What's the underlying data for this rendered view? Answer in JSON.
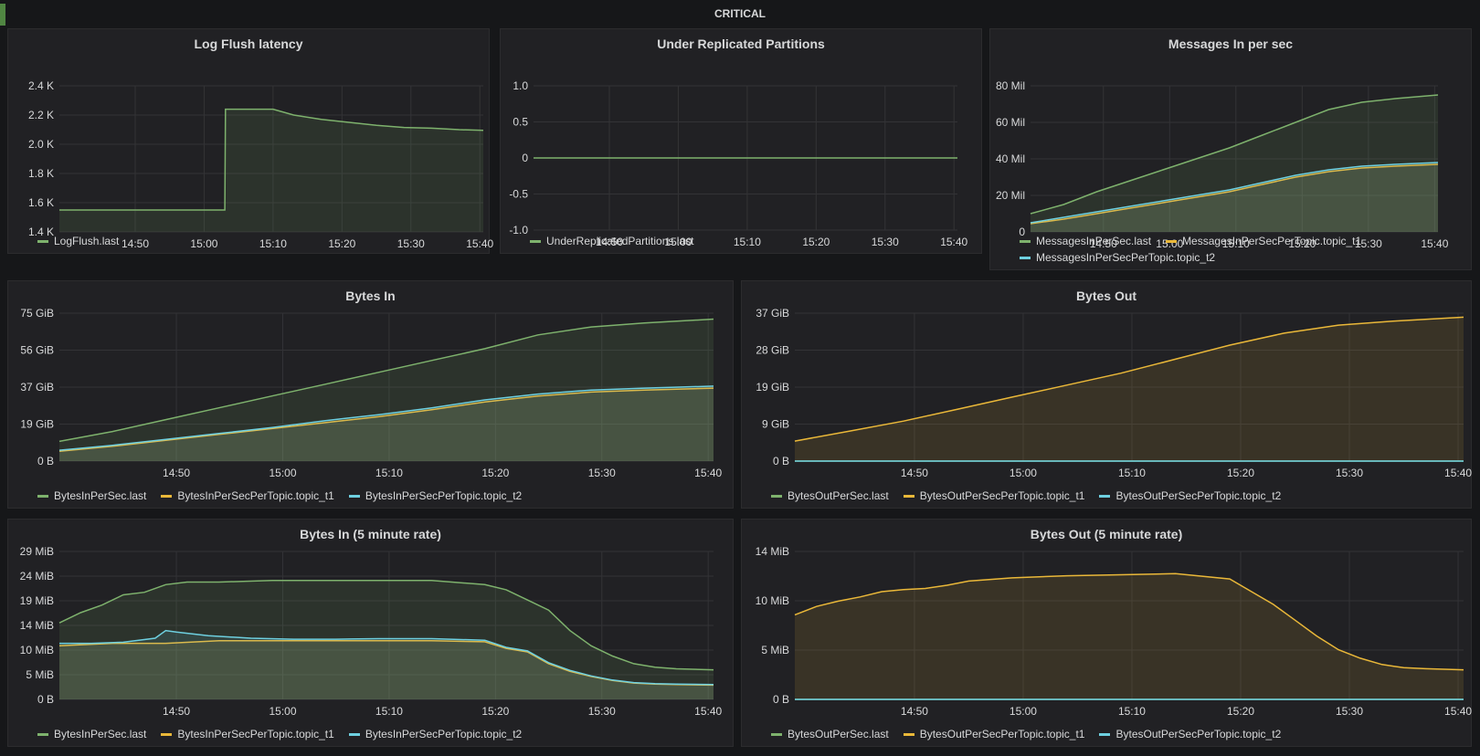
{
  "row": {
    "title": "CRITICAL",
    "marker_color": "#508642"
  },
  "colors": {
    "green": "#7eb26d",
    "orange": "#eab839",
    "cyan": "#6ed0e0",
    "grid": "#333336",
    "panel_bg": "#212124"
  },
  "chart_data": [
    {
      "id": "log-flush",
      "type": "line",
      "title": "Log Flush latency",
      "xticks": [
        "14:50",
        "15:00",
        "15:10",
        "15:20",
        "15:30",
        "15:40"
      ],
      "yticks": [
        "1.4 K",
        "1.6 K",
        "1.8 K",
        "2.0 K",
        "2.2 K",
        "2.4 K"
      ],
      "ylim": [
        1400,
        2400
      ],
      "xrange_min": [
        0,
        61.5
      ],
      "tick_positions_min": [
        11,
        21,
        31,
        41,
        51,
        61
      ],
      "series": [
        {
          "name": "LogFlush.last",
          "color": "#7eb26d",
          "x": [
            0,
            24,
            24.1,
            31,
            34,
            38,
            42,
            46,
            50,
            54,
            58,
            61.5
          ],
          "y": [
            1550,
            1550,
            2240,
            2240,
            2200,
            2170,
            2150,
            2130,
            2115,
            2110,
            2100,
            2095
          ]
        }
      ]
    },
    {
      "id": "under-replicated",
      "type": "line",
      "title": "Under Replicated Partitions",
      "xticks": [
        "14:50",
        "15:00",
        "15:10",
        "15:20",
        "15:30",
        "15:40"
      ],
      "yticks": [
        "-1.0",
        "-0.5",
        "0",
        "0.5",
        "1.0"
      ],
      "ylim": [
        -1.0,
        1.0
      ],
      "xrange_min": [
        0,
        61.5
      ],
      "tick_positions_min": [
        11,
        21,
        31,
        41,
        51,
        61
      ],
      "series": [
        {
          "name": "UnderReplicatedPartitions.last",
          "color": "#7eb26d",
          "x": [
            0,
            61.5
          ],
          "y": [
            0,
            0
          ]
        }
      ]
    },
    {
      "id": "messages-in",
      "type": "line",
      "title": "Messages In per sec",
      "xticks": [
        "14:50",
        "15:00",
        "15:10",
        "15:20",
        "15:30",
        "15:40"
      ],
      "yticks": [
        "0",
        "20 Mil",
        "40 Mil",
        "60 Mil",
        "80 Mil"
      ],
      "ylim": [
        0,
        80
      ],
      "xrange_min": [
        0,
        61.5
      ],
      "tick_positions_min": [
        11,
        21,
        31,
        41,
        51,
        61
      ],
      "series": [
        {
          "name": "MessagesInPerSec.last",
          "color": "#7eb26d",
          "x": [
            0,
            5,
            10,
            15,
            20,
            25,
            30,
            35,
            40,
            45,
            50,
            55,
            61.5
          ],
          "y": [
            10,
            15,
            22,
            28,
            34,
            40,
            46,
            53,
            60,
            67,
            71,
            73,
            75
          ]
        },
        {
          "name": "MessagesInPerSecPerTopic.topic_t1",
          "color": "#eab839",
          "x": [
            0,
            5,
            10,
            15,
            20,
            25,
            30,
            35,
            40,
            45,
            50,
            55,
            61.5
          ],
          "y": [
            4.5,
            7,
            10,
            13,
            16,
            19,
            22,
            26,
            30,
            33,
            35,
            36,
            37
          ]
        },
        {
          "name": "MessagesInPerSecPerTopic.topic_t2",
          "color": "#6ed0e0",
          "x": [
            0,
            5,
            10,
            15,
            20,
            25,
            30,
            35,
            40,
            45,
            50,
            55,
            61.5
          ],
          "y": [
            5,
            8,
            11,
            14,
            17,
            20,
            23,
            27,
            31,
            34,
            36,
            37,
            38
          ]
        }
      ]
    },
    {
      "id": "bytes-in",
      "type": "line",
      "title": "Bytes In",
      "xticks": [
        "14:50",
        "15:00",
        "15:10",
        "15:20",
        "15:30",
        "15:40"
      ],
      "yticks": [
        "0 B",
        "19 GiB",
        "37 GiB",
        "56 GiB",
        "75 GiB"
      ],
      "ylim": [
        0,
        75
      ],
      "xrange_min": [
        0,
        61.5
      ],
      "tick_positions_min": [
        11,
        21,
        31,
        41,
        51,
        61
      ],
      "series": [
        {
          "name": "BytesInPerSec.last",
          "color": "#7eb26d",
          "x": [
            0,
            5,
            10,
            15,
            20,
            25,
            30,
            35,
            40,
            45,
            50,
            55,
            61.5
          ],
          "y": [
            10,
            15,
            21,
            27,
            33,
            39,
            45,
            51,
            57,
            64,
            68,
            70,
            72
          ]
        },
        {
          "name": "BytesInPerSecPerTopic.topic_t1",
          "color": "#eab839",
          "x": [
            0,
            5,
            10,
            15,
            20,
            25,
            30,
            35,
            40,
            45,
            50,
            55,
            61.5
          ],
          "y": [
            5,
            7.5,
            10.5,
            13.5,
            16.5,
            19.5,
            22.5,
            26,
            30,
            33,
            35,
            36,
            37
          ]
        },
        {
          "name": "BytesInPerSecPerTopic.topic_t2",
          "color": "#6ed0e0",
          "x": [
            0,
            5,
            10,
            15,
            20,
            25,
            30,
            35,
            40,
            45,
            50,
            55,
            61.5
          ],
          "y": [
            5.5,
            8,
            11,
            14,
            17,
            20.5,
            23.5,
            27,
            31,
            34,
            36,
            37,
            38
          ]
        }
      ]
    },
    {
      "id": "bytes-out",
      "type": "line",
      "title": "Bytes Out",
      "xticks": [
        "14:50",
        "15:00",
        "15:10",
        "15:20",
        "15:30",
        "15:40"
      ],
      "yticks": [
        "0 B",
        "9 GiB",
        "19 GiB",
        "28 GiB",
        "37 GiB"
      ],
      "ylim": [
        0,
        37
      ],
      "xrange_min": [
        0,
        61.5
      ],
      "tick_positions_min": [
        11,
        21,
        31,
        41,
        51,
        61
      ],
      "series": [
        {
          "name": "BytesOutPerSec.last",
          "color": "#7eb26d",
          "x": [
            0,
            61.5
          ],
          "y": [
            0,
            0
          ]
        },
        {
          "name": "BytesOutPerSecPerTopic.topic_t1",
          "color": "#eab839",
          "x": [
            0,
            5,
            10,
            15,
            20,
            25,
            30,
            35,
            40,
            45,
            50,
            55,
            61.5
          ],
          "y": [
            5,
            7.5,
            10,
            13,
            16,
            19,
            22,
            25.5,
            29,
            32,
            34,
            35,
            36
          ]
        },
        {
          "name": "BytesOutPerSecPerTopic.topic_t2",
          "color": "#6ed0e0",
          "x": [
            0,
            61.5
          ],
          "y": [
            0,
            0
          ]
        }
      ]
    },
    {
      "id": "bytes-in-rate",
      "type": "line",
      "title": "Bytes In (5 minute rate)",
      "xticks": [
        "14:50",
        "15:00",
        "15:10",
        "15:20",
        "15:30",
        "15:40"
      ],
      "yticks": [
        "0 B",
        "5 MiB",
        "10 MiB",
        "14 MiB",
        "19 MiB",
        "24 MiB",
        "29 MiB"
      ],
      "ylim": [
        0,
        29
      ],
      "xrange_min": [
        0,
        61.5
      ],
      "tick_positions_min": [
        11,
        21,
        31,
        41,
        51,
        61
      ],
      "series": [
        {
          "name": "BytesInPerSec.last",
          "color": "#7eb26d",
          "x": [
            0,
            2,
            4,
            6,
            8,
            10,
            12,
            15,
            20,
            25,
            30,
            35,
            40,
            42,
            44,
            46,
            48,
            50,
            52,
            54,
            56,
            58,
            61.5
          ],
          "y": [
            15,
            17,
            18.5,
            20.5,
            21,
            22.5,
            23,
            23,
            23.3,
            23.3,
            23.3,
            23.3,
            22.5,
            21.5,
            19.5,
            17.5,
            13.5,
            10.5,
            8.5,
            7,
            6.3,
            6,
            5.8
          ]
        },
        {
          "name": "BytesInPerSecPerTopic.topic_t1",
          "color": "#eab839",
          "x": [
            0,
            5,
            10,
            15,
            20,
            25,
            30,
            35,
            40,
            42,
            44,
            46,
            48,
            50,
            52,
            54,
            56,
            58,
            61.5
          ],
          "y": [
            10.5,
            11,
            11,
            11.5,
            11.5,
            11.5,
            11.5,
            11.5,
            11.3,
            10,
            9.3,
            7,
            5.5,
            4.5,
            3.7,
            3.2,
            3,
            2.9,
            2.8
          ]
        },
        {
          "name": "BytesInPerSecPerTopic.topic_t2",
          "color": "#6ed0e0",
          "x": [
            0,
            3,
            6,
            9,
            10,
            11,
            14,
            18,
            22,
            26,
            30,
            35,
            40,
            42,
            44,
            46,
            48,
            50,
            52,
            54,
            56,
            58,
            61.5
          ],
          "y": [
            11,
            11,
            11.2,
            12,
            13.5,
            13.2,
            12.5,
            12,
            11.8,
            11.8,
            11.9,
            11.9,
            11.6,
            10.2,
            9.5,
            7.2,
            5.7,
            4.6,
            3.8,
            3.3,
            3.1,
            3,
            2.9
          ]
        }
      ]
    },
    {
      "id": "bytes-out-rate",
      "type": "line",
      "title": "Bytes Out (5 minute rate)",
      "xticks": [
        "14:50",
        "15:00",
        "15:10",
        "15:20",
        "15:30",
        "15:40"
      ],
      "yticks": [
        "0 B",
        "5 MiB",
        "10 MiB",
        "14 MiB"
      ],
      "ylim": [
        0,
        14
      ],
      "xrange_min": [
        0,
        61.5
      ],
      "tick_positions_min": [
        11,
        21,
        31,
        41,
        51,
        61
      ],
      "series": [
        {
          "name": "BytesOutPerSec.last",
          "color": "#7eb26d",
          "x": [
            0,
            61.5
          ],
          "y": [
            0,
            0
          ]
        },
        {
          "name": "BytesOutPerSecPerTopic.topic_t1",
          "color": "#eab839",
          "x": [
            0,
            2,
            4,
            6,
            8,
            10,
            12,
            14,
            16,
            20,
            25,
            30,
            35,
            40,
            42,
            44,
            46,
            48,
            50,
            52,
            54,
            56,
            58,
            61.5
          ],
          "y": [
            8,
            8.8,
            9.3,
            9.7,
            10.2,
            10.4,
            10.5,
            10.8,
            11.2,
            11.5,
            11.7,
            11.8,
            11.9,
            11.4,
            10.2,
            9,
            7.5,
            6,
            4.7,
            3.9,
            3.3,
            3,
            2.9,
            2.8
          ]
        },
        {
          "name": "BytesOutPerSecPerTopic.topic_t2",
          "color": "#6ed0e0",
          "x": [
            0,
            61.5
          ],
          "y": [
            0,
            0
          ]
        }
      ]
    }
  ]
}
